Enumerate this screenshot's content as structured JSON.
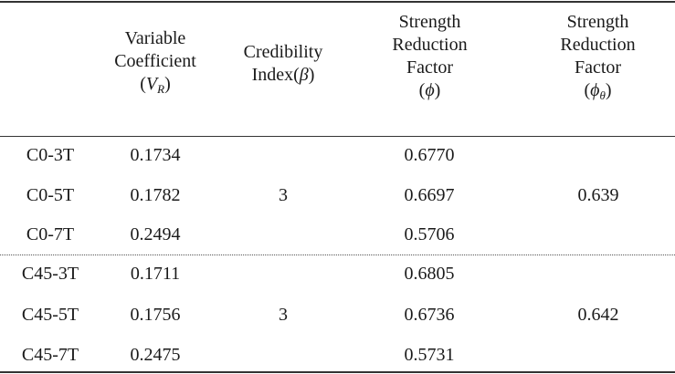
{
  "headers": {
    "col1": "",
    "col2": {
      "line1": "Variable",
      "line2": "Coefficient",
      "open": "(",
      "sym": "V",
      "sub": "R",
      "close": ")"
    },
    "col3": {
      "line1": "Credibility",
      "pre": "Index(",
      "sym": "β",
      "close": ")"
    },
    "col4": {
      "line1": "Strength",
      "line2": "Reduction",
      "line3": "Factor",
      "open": "(",
      "sym": "ϕ",
      "close": ")"
    },
    "col5": {
      "line1": "Strength",
      "line2": "Reduction",
      "line3": "Factor",
      "open": "(",
      "sym": "ϕ",
      "sub": "θ",
      "close": ")"
    }
  },
  "groups": [
    {
      "beta": "3",
      "phi_theta": "0.639",
      "rows": [
        {
          "specimen": "C0-3T",
          "vr": "0.1734",
          "phi": "0.6770"
        },
        {
          "specimen": "C0-5T",
          "vr": "0.1782",
          "phi": "0.6697"
        },
        {
          "specimen": "C0-7T",
          "vr": "0.2494",
          "phi": "0.5706"
        }
      ]
    },
    {
      "beta": "3",
      "phi_theta": "0.642",
      "rows": [
        {
          "specimen": "C45-3T",
          "vr": "0.1711",
          "phi": "0.6805"
        },
        {
          "specimen": "C45-5T",
          "vr": "0.1756",
          "phi": "0.6736"
        },
        {
          "specimen": "C45-7T",
          "vr": "0.2475",
          "phi": "0.5731"
        }
      ]
    }
  ]
}
